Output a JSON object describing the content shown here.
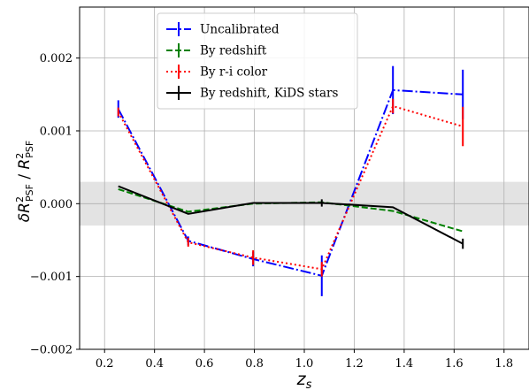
{
  "chart_data": {
    "type": "line",
    "xlabel_main": "z",
    "xlabel_sub": "s",
    "ylabel_main": "δR",
    "ylabel_sup": "2",
    "ylabel_sub": "PSF",
    "ylabel_sep": " / ",
    "ylabel_denom_main": "R",
    "ylabel_denom_sup": "2",
    "ylabel_denom_sub": "PSF",
    "xlim": [
      0.1,
      1.9
    ],
    "ylim": [
      -0.002,
      0.0027
    ],
    "xticks": [
      0.2,
      0.4,
      0.6,
      0.8,
      1.0,
      1.2,
      1.4,
      1.6,
      1.8
    ],
    "xtick_labels": [
      "0.2",
      "0.4",
      "0.6",
      "0.8",
      "1.0",
      "1.2",
      "1.4",
      "1.6",
      "1.8"
    ],
    "yticks": [
      -0.002,
      -0.001,
      0.0,
      0.001,
      0.002
    ],
    "ytick_labels": [
      "−0.002",
      "−0.001",
      "0.000",
      "0.001",
      "0.002"
    ],
    "grid": true,
    "shaded_band": {
      "y0": -0.0003,
      "y1": 0.0003,
      "color": "#e3e3e3"
    },
    "legend_placement": "top-center",
    "x": [
      0.255,
      0.535,
      0.795,
      1.07,
      1.355,
      1.635
    ],
    "series": [
      {
        "name": "Uncalibrated",
        "color": "#0000ff",
        "dash": "12,3,2,3",
        "values": [
          0.0013,
          -0.00051,
          -0.00076,
          -0.00099,
          0.00156,
          0.0015
        ],
        "errors": [
          0.00012,
          6e-05,
          0.0001,
          0.00028,
          0.00033,
          0.00034
        ]
      },
      {
        "name": "By redshift",
        "color": "#008000",
        "dash": "7,3",
        "values": [
          0.0002,
          -0.00011,
          0.0,
          2e-05,
          -0.0001,
          -0.00038
        ],
        "errors": [
          0.0,
          0.0,
          0.0,
          0.0,
          0.0,
          0.0
        ]
      },
      {
        "name": "By r-i color",
        "color": "#ff0000",
        "dash": "2,3",
        "values": [
          0.00126,
          -0.00053,
          -0.00074,
          -0.0009,
          0.00134,
          0.00106
        ],
        "errors": [
          6e-05,
          6e-05,
          0.0001,
          0.0001,
          0.0001,
          0.00027
        ]
      },
      {
        "name": "By redshift, KiDS stars",
        "color": "#000000",
        "dash": "",
        "values": [
          0.00024,
          -0.00014,
          1e-05,
          1e-05,
          -5e-05,
          -0.00055
        ],
        "errors": [
          0.0,
          0.0,
          0.0,
          5e-05,
          0.0,
          7e-05
        ]
      }
    ]
  }
}
